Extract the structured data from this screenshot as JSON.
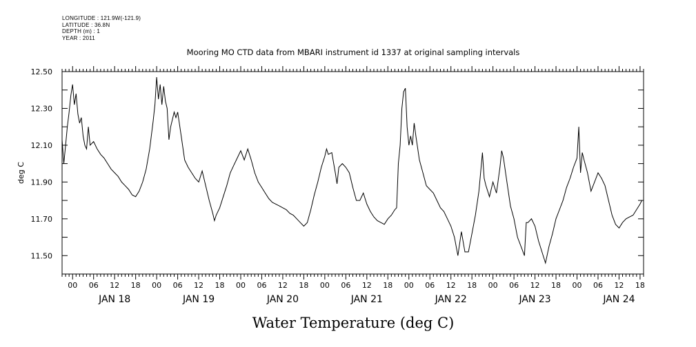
{
  "meta": {
    "longitude": "LONGITUDE : 121.9W(-121.9)",
    "latitude": "LATITUDE : 36.8N",
    "depth": "DEPTH (m) : 1",
    "year": "YEAR : 2011"
  },
  "chart_data": {
    "type": "line",
    "title": "Mooring MO CTD data from MBARI instrument id 1337 at original sampling intervals",
    "xlabel": "Water Temperature (deg C)",
    "ylabel": "deg C",
    "xlim": [
      "2011-01-17T21:00",
      "2011-01-24T19:00"
    ],
    "ylim": [
      11.4,
      12.5
    ],
    "y_ticks": [
      "11.50",
      "11.70",
      "11.90",
      "12.10",
      "12.30",
      "12.50"
    ],
    "hour_ticks": [
      {
        "t": "2011-01-18T00:00",
        "label": "00"
      },
      {
        "t": "2011-01-18T06:00",
        "label": "06"
      },
      {
        "t": "2011-01-18T12:00",
        "label": "12"
      },
      {
        "t": "2011-01-18T18:00",
        "label": "18"
      },
      {
        "t": "2011-01-19T00:00",
        "label": "00"
      },
      {
        "t": "2011-01-19T06:00",
        "label": "06"
      },
      {
        "t": "2011-01-19T12:00",
        "label": "12"
      },
      {
        "t": "2011-01-19T18:00",
        "label": "18"
      },
      {
        "t": "2011-01-20T00:00",
        "label": "00"
      },
      {
        "t": "2011-01-20T06:00",
        "label": "06"
      },
      {
        "t": "2011-01-20T12:00",
        "label": "12"
      },
      {
        "t": "2011-01-20T18:00",
        "label": "18"
      },
      {
        "t": "2011-01-21T00:00",
        "label": "00"
      },
      {
        "t": "2011-01-21T06:00",
        "label": "06"
      },
      {
        "t": "2011-01-21T12:00",
        "label": "12"
      },
      {
        "t": "2011-01-21T18:00",
        "label": "18"
      },
      {
        "t": "2011-01-22T00:00",
        "label": "00"
      },
      {
        "t": "2011-01-22T06:00",
        "label": "06"
      },
      {
        "t": "2011-01-22T12:00",
        "label": "12"
      },
      {
        "t": "2011-01-22T18:00",
        "label": "18"
      },
      {
        "t": "2011-01-23T00:00",
        "label": "00"
      },
      {
        "t": "2011-01-23T06:00",
        "label": "06"
      },
      {
        "t": "2011-01-23T12:00",
        "label": "12"
      },
      {
        "t": "2011-01-23T18:00",
        "label": "18"
      },
      {
        "t": "2011-01-24T00:00",
        "label": "00"
      },
      {
        "t": "2011-01-24T06:00",
        "label": "06"
      },
      {
        "t": "2011-01-24T12:00",
        "label": "12"
      },
      {
        "t": "2011-01-24T18:00",
        "label": "18"
      }
    ],
    "day_labels": [
      {
        "t": "2011-01-18T12:00",
        "label": "JAN 18"
      },
      {
        "t": "2011-01-19T12:00",
        "label": "JAN 19"
      },
      {
        "t": "2011-01-20T12:00",
        "label": "JAN 20"
      },
      {
        "t": "2011-01-21T12:00",
        "label": "JAN 21"
      },
      {
        "t": "2011-01-22T12:00",
        "label": "JAN 22"
      },
      {
        "t": "2011-01-23T12:00",
        "label": "JAN 23"
      },
      {
        "t": "2011-01-24T12:00",
        "label": "JAN 24"
      }
    ],
    "series": [
      {
        "values": [
          [
            "2011-01-17T21:00",
            12.13
          ],
          [
            "2011-01-17T21:30",
            12.0
          ],
          [
            "2011-01-17T22:00",
            12.1
          ],
          [
            "2011-01-17T22:30",
            12.2
          ],
          [
            "2011-01-17T23:00",
            12.28
          ],
          [
            "2011-01-17T23:30",
            12.37
          ],
          [
            "2011-01-18T00:00",
            12.43
          ],
          [
            "2011-01-18T00:30",
            12.32
          ],
          [
            "2011-01-18T01:00",
            12.38
          ],
          [
            "2011-01-18T01:30",
            12.27
          ],
          [
            "2011-01-18T02:00",
            12.22
          ],
          [
            "2011-01-18T02:30",
            12.25
          ],
          [
            "2011-01-18T03:00",
            12.15
          ],
          [
            "2011-01-18T03:30",
            12.1
          ],
          [
            "2011-01-18T04:00",
            12.08
          ],
          [
            "2011-01-18T04:30",
            12.2
          ],
          [
            "2011-01-18T05:00",
            12.1
          ],
          [
            "2011-01-18T06:00",
            12.12
          ],
          [
            "2011-01-18T07:00",
            12.08
          ],
          [
            "2011-01-18T08:00",
            12.05
          ],
          [
            "2011-01-18T09:00",
            12.03
          ],
          [
            "2011-01-18T10:00",
            12.0
          ],
          [
            "2011-01-18T11:00",
            11.97
          ],
          [
            "2011-01-18T12:00",
            11.95
          ],
          [
            "2011-01-18T13:00",
            11.93
          ],
          [
            "2011-01-18T14:00",
            11.9
          ],
          [
            "2011-01-18T15:00",
            11.88
          ],
          [
            "2011-01-18T16:00",
            11.86
          ],
          [
            "2011-01-18T17:00",
            11.83
          ],
          [
            "2011-01-18T18:00",
            11.82
          ],
          [
            "2011-01-18T19:00",
            11.85
          ],
          [
            "2011-01-18T20:00",
            11.9
          ],
          [
            "2011-01-18T21:00",
            11.97
          ],
          [
            "2011-01-18T22:00",
            12.08
          ],
          [
            "2011-01-18T23:00",
            12.23
          ],
          [
            "2011-01-18T23:30",
            12.32
          ],
          [
            "2011-01-19T00:00",
            12.47
          ],
          [
            "2011-01-19T00:30",
            12.35
          ],
          [
            "2011-01-19T01:00",
            12.43
          ],
          [
            "2011-01-19T01:30",
            12.32
          ],
          [
            "2011-01-19T02:00",
            12.42
          ],
          [
            "2011-01-19T02:30",
            12.34
          ],
          [
            "2011-01-19T03:00",
            12.3
          ],
          [
            "2011-01-19T03:30",
            12.13
          ],
          [
            "2011-01-19T04:00",
            12.2
          ],
          [
            "2011-01-19T05:00",
            12.28
          ],
          [
            "2011-01-19T05:30",
            12.25
          ],
          [
            "2011-01-19T06:00",
            12.28
          ],
          [
            "2011-01-19T07:00",
            12.15
          ],
          [
            "2011-01-19T08:00",
            12.02
          ],
          [
            "2011-01-19T09:00",
            11.98
          ],
          [
            "2011-01-19T10:00",
            11.95
          ],
          [
            "2011-01-19T11:00",
            11.92
          ],
          [
            "2011-01-19T12:00",
            11.9
          ],
          [
            "2011-01-19T13:00",
            11.96
          ],
          [
            "2011-01-19T14:00",
            11.88
          ],
          [
            "2011-01-19T15:00",
            11.8
          ],
          [
            "2011-01-19T16:00",
            11.73
          ],
          [
            "2011-01-19T16:30",
            11.69
          ],
          [
            "2011-01-19T17:00",
            11.72
          ],
          [
            "2011-01-19T18:00",
            11.76
          ],
          [
            "2011-01-19T19:00",
            11.82
          ],
          [
            "2011-01-19T20:00",
            11.88
          ],
          [
            "2011-01-19T21:00",
            11.95
          ],
          [
            "2011-01-19T22:00",
            11.99
          ],
          [
            "2011-01-19T23:00",
            12.03
          ],
          [
            "2011-01-20T00:00",
            12.07
          ],
          [
            "2011-01-20T01:00",
            12.02
          ],
          [
            "2011-01-20T02:00",
            12.08
          ],
          [
            "2011-01-20T03:00",
            12.02
          ],
          [
            "2011-01-20T04:00",
            11.95
          ],
          [
            "2011-01-20T05:00",
            11.9
          ],
          [
            "2011-01-20T06:00",
            11.87
          ],
          [
            "2011-01-20T07:00",
            11.84
          ],
          [
            "2011-01-20T08:00",
            11.81
          ],
          [
            "2011-01-20T09:00",
            11.79
          ],
          [
            "2011-01-20T10:00",
            11.78
          ],
          [
            "2011-01-20T11:00",
            11.77
          ],
          [
            "2011-01-20T12:00",
            11.76
          ],
          [
            "2011-01-20T13:00",
            11.75
          ],
          [
            "2011-01-20T14:00",
            11.73
          ],
          [
            "2011-01-20T15:00",
            11.72
          ],
          [
            "2011-01-20T16:00",
            11.7
          ],
          [
            "2011-01-20T17:00",
            11.68
          ],
          [
            "2011-01-20T18:00",
            11.66
          ],
          [
            "2011-01-20T19:00",
            11.68
          ],
          [
            "2011-01-20T20:00",
            11.75
          ],
          [
            "2011-01-20T21:00",
            11.83
          ],
          [
            "2011-01-20T22:00",
            11.9
          ],
          [
            "2011-01-20T23:00",
            11.98
          ],
          [
            "2011-01-21T00:00",
            12.04
          ],
          [
            "2011-01-21T00:30",
            12.08
          ],
          [
            "2011-01-21T01:00",
            12.05
          ],
          [
            "2011-01-21T02:00",
            12.06
          ],
          [
            "2011-01-21T03:00",
            11.95
          ],
          [
            "2011-01-21T03:30",
            11.89
          ],
          [
            "2011-01-21T04:00",
            11.98
          ],
          [
            "2011-01-21T05:00",
            12.0
          ],
          [
            "2011-01-21T06:00",
            11.98
          ],
          [
            "2011-01-21T07:00",
            11.95
          ],
          [
            "2011-01-21T08:00",
            11.87
          ],
          [
            "2011-01-21T09:00",
            11.8
          ],
          [
            "2011-01-21T10:00",
            11.8
          ],
          [
            "2011-01-21T11:00",
            11.84
          ],
          [
            "2011-01-21T12:00",
            11.78
          ],
          [
            "2011-01-21T13:00",
            11.74
          ],
          [
            "2011-01-21T14:00",
            11.71
          ],
          [
            "2011-01-21T15:00",
            11.69
          ],
          [
            "2011-01-21T16:00",
            11.68
          ],
          [
            "2011-01-21T17:00",
            11.67
          ],
          [
            "2011-01-21T18:00",
            11.7
          ],
          [
            "2011-01-21T19:00",
            11.72
          ],
          [
            "2011-01-21T20:00",
            11.75
          ],
          [
            "2011-01-21T20:30",
            11.76
          ],
          [
            "2011-01-21T21:00",
            12.0
          ],
          [
            "2011-01-21T21:30",
            12.1
          ],
          [
            "2011-01-21T22:00",
            12.3
          ],
          [
            "2011-01-21T22:30",
            12.39
          ],
          [
            "2011-01-21T23:00",
            12.41
          ],
          [
            "2011-01-21T23:30",
            12.2
          ],
          [
            "2011-01-22T00:00",
            12.1
          ],
          [
            "2011-01-22T00:30",
            12.15
          ],
          [
            "2011-01-22T01:00",
            12.1
          ],
          [
            "2011-01-22T01:30",
            12.22
          ],
          [
            "2011-01-22T02:00",
            12.15
          ],
          [
            "2011-01-22T03:00",
            12.02
          ],
          [
            "2011-01-22T04:00",
            11.95
          ],
          [
            "2011-01-22T05:00",
            11.88
          ],
          [
            "2011-01-22T06:00",
            11.86
          ],
          [
            "2011-01-22T07:00",
            11.84
          ],
          [
            "2011-01-22T08:00",
            11.8
          ],
          [
            "2011-01-22T09:00",
            11.76
          ],
          [
            "2011-01-22T10:00",
            11.74
          ],
          [
            "2011-01-22T11:00",
            11.7
          ],
          [
            "2011-01-22T12:00",
            11.66
          ],
          [
            "2011-01-22T13:00",
            11.6
          ],
          [
            "2011-01-22T14:00",
            11.5
          ],
          [
            "2011-01-22T15:00",
            11.63
          ],
          [
            "2011-01-22T16:00",
            11.52
          ],
          [
            "2011-01-22T17:00",
            11.52
          ],
          [
            "2011-01-22T18:00",
            11.62
          ],
          [
            "2011-01-22T19:00",
            11.72
          ],
          [
            "2011-01-22T20:00",
            11.85
          ],
          [
            "2011-01-22T21:00",
            12.06
          ],
          [
            "2011-01-22T21:30",
            11.92
          ],
          [
            "2011-01-22T22:00",
            11.88
          ],
          [
            "2011-01-22T23:00",
            11.82
          ],
          [
            "2011-01-23T00:00",
            11.9
          ],
          [
            "2011-01-23T01:00",
            11.84
          ],
          [
            "2011-01-23T02:00",
            11.98
          ],
          [
            "2011-01-23T02:30",
            12.07
          ],
          [
            "2011-01-23T03:00",
            12.03
          ],
          [
            "2011-01-23T04:00",
            11.9
          ],
          [
            "2011-01-23T05:00",
            11.77
          ],
          [
            "2011-01-23T06:00",
            11.7
          ],
          [
            "2011-01-23T07:00",
            11.6
          ],
          [
            "2011-01-23T08:00",
            11.55
          ],
          [
            "2011-01-23T09:00",
            11.5
          ],
          [
            "2011-01-23T09:30",
            11.68
          ],
          [
            "2011-01-23T10:00",
            11.68
          ],
          [
            "2011-01-23T11:00",
            11.7
          ],
          [
            "2011-01-23T12:00",
            11.66
          ],
          [
            "2011-01-23T13:00",
            11.58
          ],
          [
            "2011-01-23T14:00",
            11.52
          ],
          [
            "2011-01-23T15:00",
            11.46
          ],
          [
            "2011-01-23T16:00",
            11.55
          ],
          [
            "2011-01-23T17:00",
            11.62
          ],
          [
            "2011-01-23T18:00",
            11.7
          ],
          [
            "2011-01-23T19:00",
            11.75
          ],
          [
            "2011-01-23T20:00",
            11.8
          ],
          [
            "2011-01-23T21:00",
            11.87
          ],
          [
            "2011-01-23T22:00",
            11.92
          ],
          [
            "2011-01-23T23:00",
            11.98
          ],
          [
            "2011-01-24T00:00",
            12.03
          ],
          [
            "2011-01-24T00:30",
            12.2
          ],
          [
            "2011-01-24T01:00",
            11.95
          ],
          [
            "2011-01-24T01:30",
            12.06
          ],
          [
            "2011-01-24T02:00",
            12.02
          ],
          [
            "2011-01-24T03:00",
            11.95
          ],
          [
            "2011-01-24T04:00",
            11.85
          ],
          [
            "2011-01-24T05:00",
            11.9
          ],
          [
            "2011-01-24T06:00",
            11.95
          ],
          [
            "2011-01-24T07:00",
            11.92
          ],
          [
            "2011-01-24T08:00",
            11.88
          ],
          [
            "2011-01-24T09:00",
            11.8
          ],
          [
            "2011-01-24T10:00",
            11.72
          ],
          [
            "2011-01-24T11:00",
            11.67
          ],
          [
            "2011-01-24T12:00",
            11.65
          ],
          [
            "2011-01-24T13:00",
            11.68
          ],
          [
            "2011-01-24T14:00",
            11.7
          ],
          [
            "2011-01-24T15:00",
            11.71
          ],
          [
            "2011-01-24T16:00",
            11.72
          ],
          [
            "2011-01-24T17:00",
            11.75
          ],
          [
            "2011-01-24T18:00",
            11.78
          ],
          [
            "2011-01-24T18:30",
            11.8
          ]
        ]
      }
    ]
  }
}
